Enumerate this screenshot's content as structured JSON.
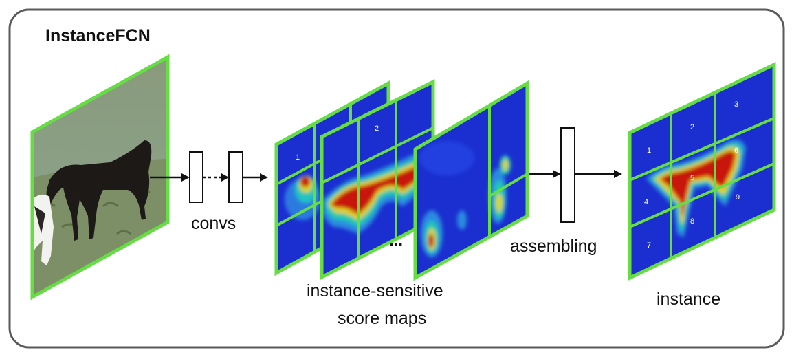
{
  "diagram": {
    "title": "InstanceFCN",
    "labels": {
      "convs": "convs",
      "ellipsis": "...",
      "assembling": "assembling",
      "score_maps_line1": "instance-sensitive",
      "score_maps_line2": "score maps",
      "instance": "instance"
    },
    "cell_numbers": {
      "map1": "1",
      "map2": "2",
      "out1": "1",
      "out2": "2",
      "out3": "3",
      "out4": "4",
      "out5": "5",
      "out6": "6",
      "out7": "7",
      "out8": "8",
      "out9": "9"
    },
    "colors": {
      "frame_border": "#5a5a5a",
      "green_border": "#66dd44",
      "heatmap_low": "#1b2fd0",
      "heatmap_high": "#c8140a",
      "arrow": "#111111"
    }
  }
}
